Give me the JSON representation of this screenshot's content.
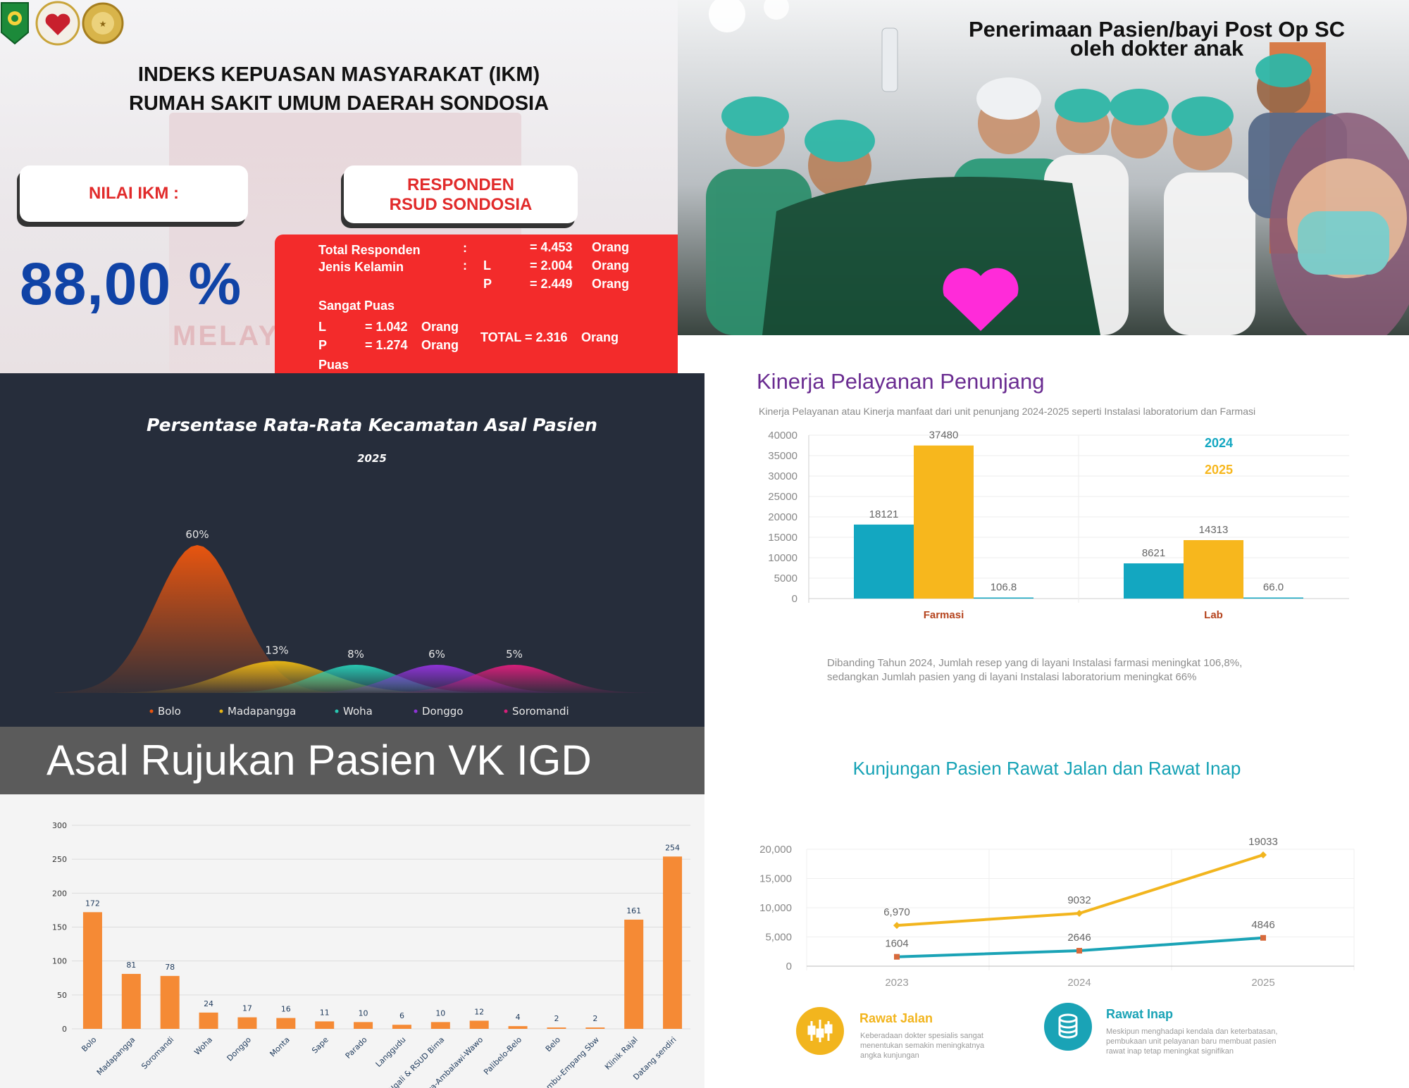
{
  "ikm": {
    "title_line1": "INDEKS KEPUASAN MASYARAKAT (IKM)",
    "title_line2": "RUMAH SAKIT UMUM DAERAH SONDOSIA",
    "nilai_label": "NILAI IKM :",
    "responden_line1": "RESPONDEN",
    "responden_line2": "RSUD SONDOSIA",
    "nilai_value": "88,00 %",
    "bg_ghost_text": "MELAY",
    "box": {
      "total_label": "Total Responden",
      "total_colon": ":",
      "total_value": "= 4.453",
      "total_unit": "Orang",
      "jk_label": "Jenis Kelamin",
      "jk_colon": ":",
      "l_label": "L",
      "l_value": "= 2.004",
      "l_unit": "Orang",
      "p_label": "P",
      "p_value": "= 2.449",
      "p_unit": "Orang",
      "sangat_puas": "Sangat Puas",
      "sp_l_label": "L",
      "sp_l_value": "= 1.042",
      "sp_l_unit": "Orang",
      "sp_p_label": "P",
      "sp_p_value": "= 1.274",
      "sp_p_unit": "Orang",
      "total_sp": "TOTAL = 2.316",
      "total_sp_unit": "Orang",
      "puas": "Puas"
    },
    "colors": {
      "red": "#f32b2b",
      "blue": "#1043a6"
    }
  },
  "photo": {
    "caption_line1": "Penerimaan Pasien/bayi Post Op SC",
    "caption_line2": "oleh dokter anak"
  },
  "area_chart": {
    "chart_data": {
      "type": "area",
      "title": "Persentase Rata-Rata Kecamatan Asal Pasien",
      "subtitle": "2025",
      "categories": [
        "Bolo",
        "Madapangga",
        "Woha",
        "Donggo",
        "Soromandi"
      ],
      "values": [
        60,
        13,
        8,
        6,
        5
      ],
      "value_labels": [
        "60%",
        "13%",
        "8%",
        "6%",
        "5%"
      ],
      "colors": [
        "#e8550f",
        "#e6b415",
        "#29c7b1",
        "#8e33d6",
        "#d61f7a"
      ],
      "legend_position": "bottom"
    }
  },
  "vk_chart": {
    "header": "Asal Rujukan Pasien VK IGD",
    "chart_data": {
      "type": "bar",
      "categories": [
        "Bolo",
        "Madapangga",
        "Soromandi",
        "Woha",
        "Donggo",
        "Monta",
        "Sape",
        "Parado",
        "Langgudu",
        "Ngali & RSUD Bima",
        "u-Wera-Ambalawi-Wawo",
        "Palibelo-Belo",
        "Belo",
        "Lambu-Empang Sbw",
        "Klinik Rajal",
        "Datang sendiri"
      ],
      "values": [
        172,
        81,
        78,
        24,
        17,
        16,
        11,
        10,
        6,
        10,
        12,
        4,
        2,
        2,
        161,
        254
      ],
      "yticks": [
        0,
        50,
        100,
        150,
        200,
        250,
        300
      ],
      "ylim": [
        0,
        300
      ],
      "color": "#f58a35",
      "grid": true
    }
  },
  "kinerja": {
    "title": "Kinerja Pelayanan Penunjang",
    "subtitle": "Kinerja Pelayanan atau Kinerja manfaat  dari unit penunjang 2024-2025 seperti Instalasi laboratorium dan Farmasi",
    "note_line1": "Dibanding Tahun 2024, Jumlah resep yang di layani Instalasi farmasi meningkat 106,8%,",
    "note_line2": "sedangkan  Jumlah pasien yang di layani Instalasi laboratorium meningkat 66%",
    "chart_data": {
      "type": "bar",
      "categories": [
        "Farmasi",
        "Lab"
      ],
      "series": [
        {
          "name": "2024",
          "values": [
            18121,
            8621
          ],
          "color": "#13a7c1"
        },
        {
          "name": "2025",
          "values": [
            37480,
            14313
          ],
          "color": "#f7b71d"
        },
        {
          "name": "",
          "values": [
            106.8,
            66.0
          ],
          "color": "#13a7c1"
        }
      ],
      "value_labels": [
        [
          "18121",
          "8621"
        ],
        [
          "37480",
          "14313"
        ],
        [
          "106.8",
          "66.0"
        ]
      ],
      "yticks": [
        0,
        5000,
        10000,
        15000,
        20000,
        25000,
        30000,
        35000,
        40000
      ],
      "ylim": [
        0,
        40000
      ],
      "legend_position": "top-right",
      "grid": true
    }
  },
  "kunjungan": {
    "title": "Kunjungan Pasien Rawat Jalan dan Rawat Inap",
    "chart_data": {
      "type": "line",
      "x": [
        "2023",
        "2024",
        "2025"
      ],
      "series": [
        {
          "name": "Rawat Jalan",
          "values": [
            6970,
            9032,
            19033
          ],
          "labels": [
            "6,970",
            "9032",
            "19033"
          ],
          "color": "#f2b51e"
        },
        {
          "name": "Rawat Inap",
          "values": [
            1604,
            2646,
            4846
          ],
          "labels": [
            "1604",
            "2646",
            "4846"
          ],
          "color": "#1aa3b6"
        }
      ],
      "yticks": [
        "0",
        "5,000",
        "10,000",
        "15,000",
        "20,000"
      ],
      "ylim": [
        0,
        20000
      ],
      "grid": true
    },
    "legend": {
      "rawat_jalan_title": "Rawat Jalan",
      "rawat_jalan_desc_1": "Keberadaan dokter spesialis sangat",
      "rawat_jalan_desc_2": "menentukan semakin meningkatnya",
      "rawat_jalan_desc_3": "angka kunjungan",
      "rawat_inap_title": "Rawat Inap",
      "rawat_inap_desc_1": "Meskipun menghadapi kendala dan keterbatasan,",
      "rawat_inap_desc_2": "pembukaan unit pelayanan baru membuat pasien",
      "rawat_inap_desc_3": "rawat inap tetap meningkat signifikan"
    }
  }
}
